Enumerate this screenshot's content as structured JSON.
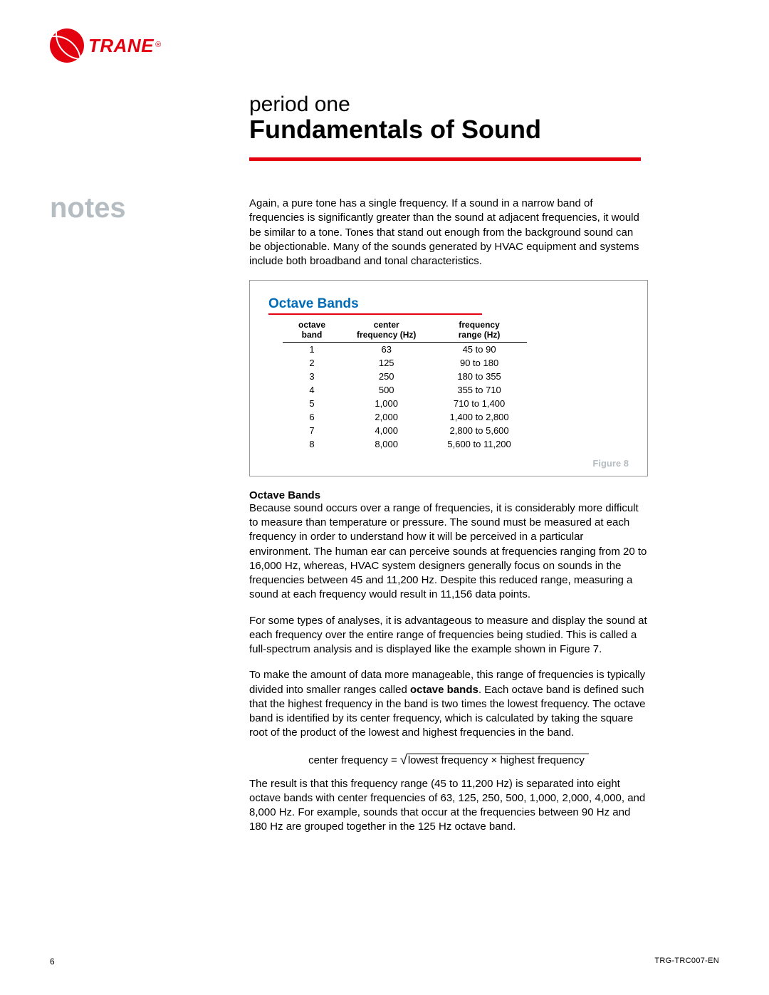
{
  "brand": {
    "name": "TRANE",
    "reg": "®",
    "logo_color": "#e3000f"
  },
  "header": {
    "subtitle": "period one",
    "title": "Fundamentals of Sound",
    "rule_color": "#e3000f"
  },
  "sidebar": {
    "label": "notes",
    "label_color": "#b5bdc2"
  },
  "intro_paragraph": "Again, a pure tone has a single frequency. If a sound in a narrow band of frequencies is significantly greater than the sound at adjacent frequencies, it would be similar to a tone. Tones that stand out enough from the background sound can be objectionable. Many of the sounds generated by HVAC equipment and systems include both broadband and tonal characteristics.",
  "figure": {
    "title": "Octave Bands",
    "title_color": "#006bb6",
    "rule_color": "#e3000f",
    "caption": "Figure 8",
    "caption_color": "#b5bdc2",
    "columns": {
      "c1a": "octave",
      "c1b": "band",
      "c2a": "center",
      "c2b": "frequency (Hz)",
      "c3a": "frequency",
      "c3b": "range (Hz)"
    },
    "rows": [
      {
        "band": "1",
        "center": "63",
        "range": "45 to 90"
      },
      {
        "band": "2",
        "center": "125",
        "range": "90 to 180"
      },
      {
        "band": "3",
        "center": "250",
        "range": "180 to 355"
      },
      {
        "band": "4",
        "center": "500",
        "range": "355 to 710"
      },
      {
        "band": "5",
        "center": "1,000",
        "range": "710 to 1,400"
      },
      {
        "band": "6",
        "center": "2,000",
        "range": "1,400 to 2,800"
      },
      {
        "band": "7",
        "center": "4,000",
        "range": "2,800 to 5,600"
      },
      {
        "band": "8",
        "center": "8,000",
        "range": "5,600 to 11,200"
      }
    ]
  },
  "section": {
    "heading": "Octave Bands",
    "p1": "Because sound occurs over a range of frequencies, it is considerably more difficult to measure than temperature or pressure. The sound must be measured at each frequency in order to understand how it will be perceived in a particular environment. The human ear can perceive sounds at frequencies ranging from 20 to 16,000 Hz, whereas, HVAC system designers generally focus on sounds in the frequencies between 45 and 11,200 Hz. Despite this reduced range, measuring a sound at each frequency would result in 11,156 data points.",
    "p2": "For some types of analyses, it is advantageous to measure and display the sound at each frequency over the entire range of frequencies being studied. This is called a full-spectrum analysis and is displayed like the example shown in Figure 7.",
    "p3a": "To make the amount of data more manageable, this range of frequencies is typically divided into smaller ranges called ",
    "p3_bold": "octave bands",
    "p3b": ". Each octave band is defined such that the highest frequency in the band is two times the lowest frequency. The octave band is identified by its center frequency, which is calculated by taking the square root of the product of the lowest and highest frequencies in the band.",
    "formula_lhs": "center frequency  = ",
    "formula_rhs": "lowest frequency × highest frequency",
    "p4": "The result is that this frequency range (45 to 11,200 Hz) is separated into eight octave bands with center frequencies of 63, 125, 250, 500, 1,000, 2,000, 4,000, and 8,000 Hz. For example, sounds that occur at the frequencies between 90 Hz and 180 Hz are grouped together in the 125 Hz octave band."
  },
  "footer": {
    "page": "6",
    "docid": "TRG-TRC007-EN"
  }
}
